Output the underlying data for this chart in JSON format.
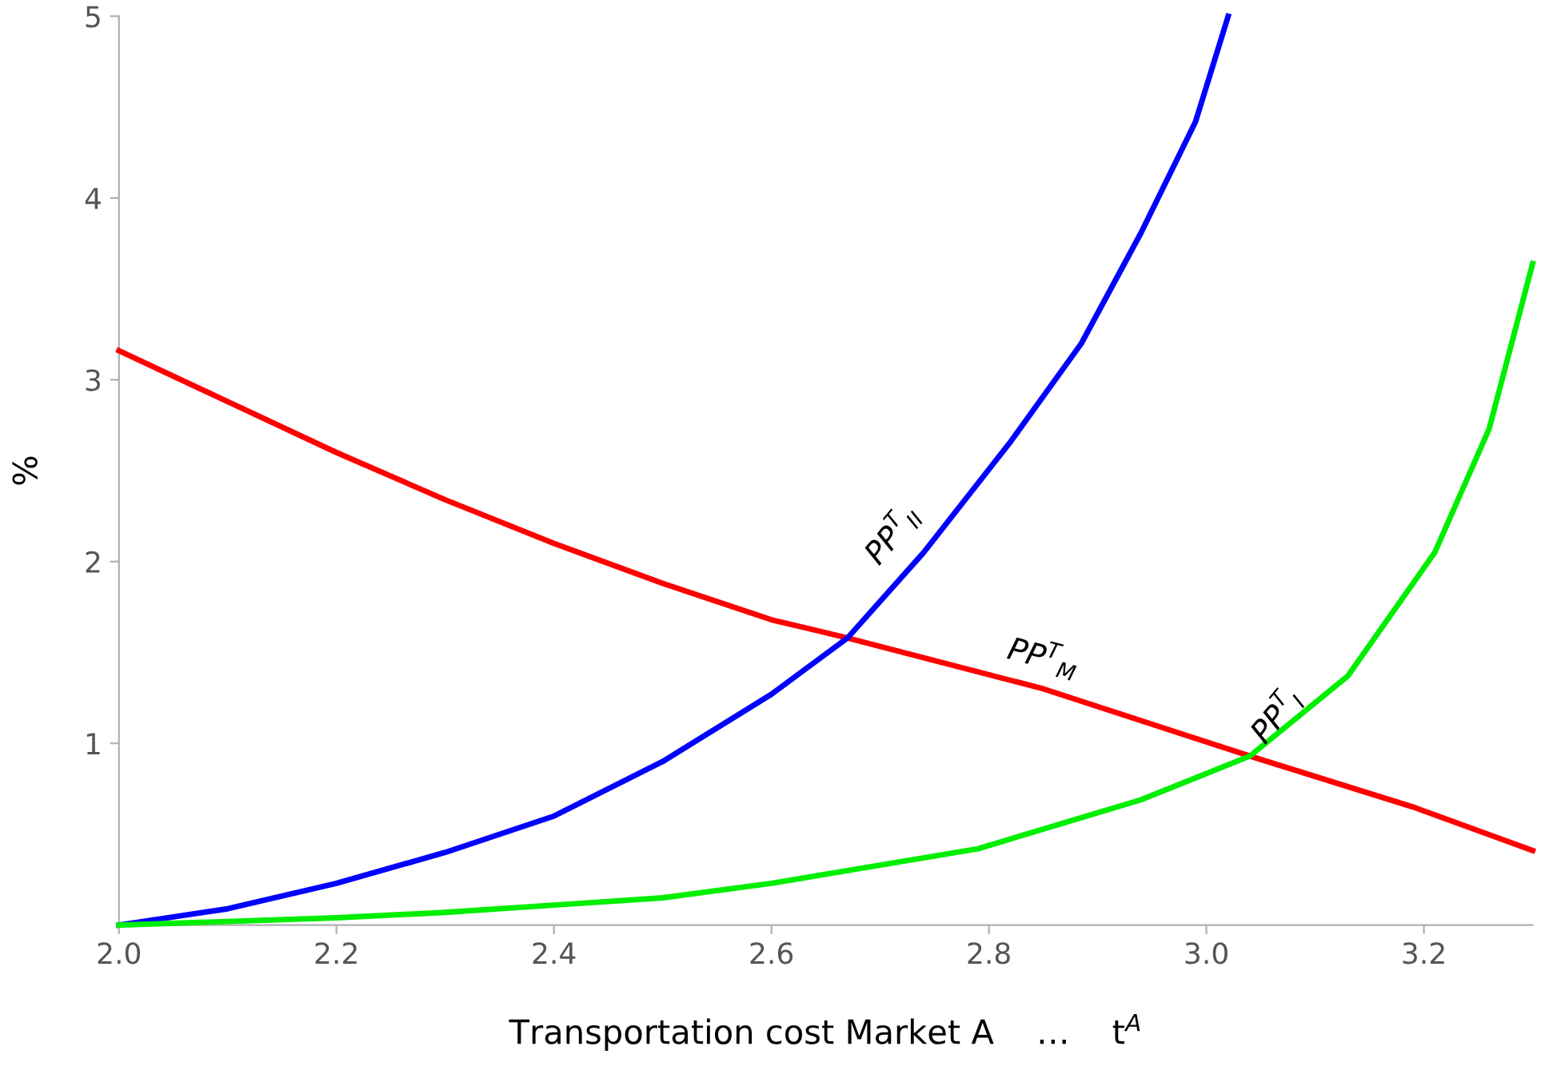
{
  "chart_data": {
    "type": "line",
    "xlabel": "Transportation cost Market A    …    t$^{A}$",
    "ylabel": "%",
    "xlim": [
      2.0,
      3.3
    ],
    "ylim": [
      0,
      5
    ],
    "xticks": [
      {
        "value": 2.0,
        "label": "2.0"
      },
      {
        "value": 2.2,
        "label": "2.2"
      },
      {
        "value": 2.4,
        "label": "2.4"
      },
      {
        "value": 2.6,
        "label": "2.6"
      },
      {
        "value": 2.8,
        "label": "2.8"
      },
      {
        "value": 3.0,
        "label": "3.0"
      },
      {
        "value": 3.2,
        "label": "3.2"
      }
    ],
    "yticks": [
      1,
      2,
      3,
      4,
      5
    ],
    "grid": false,
    "marker": "none",
    "line_style": "solid",
    "series": [
      {
        "name": "PP$^{T}$$_{M}$",
        "color": "#ff0000",
        "x": [
          2.0,
          2.1,
          2.2,
          2.3,
          2.4,
          2.5,
          2.6,
          2.67,
          2.85,
          3.04,
          3.19,
          3.3
        ],
        "values": [
          3.16,
          2.88,
          2.6,
          2.34,
          2.1,
          1.88,
          1.68,
          1.58,
          1.3,
          0.93,
          0.65,
          0.41
        ]
      },
      {
        "name": "PP$^{T}$$_{II}$",
        "color": "#0000ff",
        "x": [
          2.0,
          2.1,
          2.2,
          2.3,
          2.4,
          2.5,
          2.6,
          2.67,
          2.74,
          2.82,
          2.885,
          2.94,
          2.99,
          3.02
        ],
        "values": [
          0,
          0.09,
          0.23,
          0.4,
          0.6,
          0.9,
          1.27,
          1.58,
          2.05,
          2.66,
          3.2,
          3.81,
          4.42,
          5.0
        ]
      },
      {
        "name": "PP$^{T}$$_{I}$",
        "color": "#00ee00",
        "x": [
          2.0,
          2.1,
          2.2,
          2.3,
          2.4,
          2.5,
          2.6,
          2.79,
          2.94,
          3.04,
          3.13,
          3.21,
          3.26,
          3.3
        ],
        "values": [
          0,
          0.02,
          0.04,
          0.07,
          0.11,
          0.15,
          0.23,
          0.42,
          0.69,
          0.93,
          1.37,
          2.05,
          2.73,
          3.64
        ]
      }
    ]
  }
}
